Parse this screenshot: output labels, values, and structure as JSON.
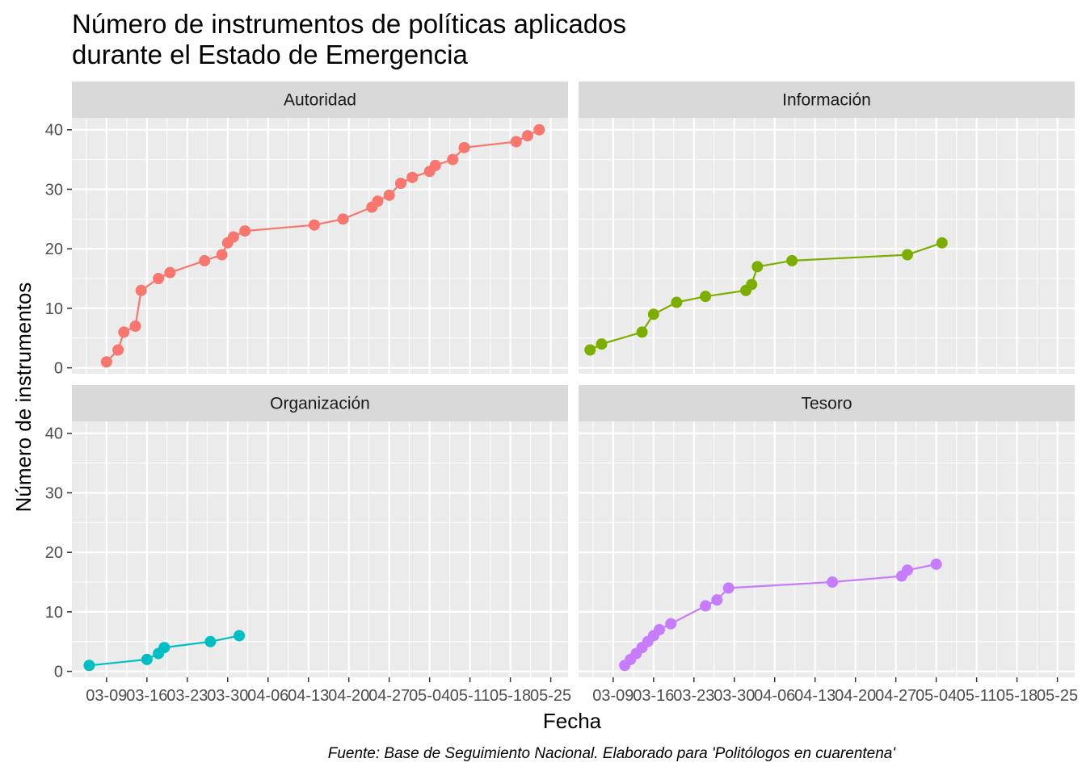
{
  "chart_data": {
    "type": "line",
    "title_lines": [
      "Número de instrumentos de políticas aplicados",
      "durante el Estado de Emergencia"
    ],
    "xlabel": "Fecha",
    "ylabel": "Número de instrumentos",
    "caption": "Fuente: Base de Seguimiento Nacional. Elaborado para 'Politólogos en cuarentena'",
    "x_tick_labels": [
      "03-09",
      "03-16",
      "03-23",
      "03-30",
      "04-06",
      "04-13",
      "04-20",
      "04-27",
      "05-04",
      "05-11",
      "05-18",
      "05-25"
    ],
    "y_ticks": [
      0,
      10,
      20,
      30,
      40
    ],
    "ylim": [
      -1,
      42
    ],
    "xlim": [
      "2020-03-03",
      "2020-05-28"
    ],
    "grid": true,
    "legend": "none",
    "facets": [
      {
        "name": "Autoridad",
        "color": "#F8766D",
        "points": [
          {
            "x": "2020-03-09",
            "y": 1
          },
          {
            "x": "2020-03-11",
            "y": 3
          },
          {
            "x": "2020-03-12",
            "y": 6
          },
          {
            "x": "2020-03-14",
            "y": 7
          },
          {
            "x": "2020-03-15",
            "y": 13
          },
          {
            "x": "2020-03-18",
            "y": 15
          },
          {
            "x": "2020-03-20",
            "y": 16
          },
          {
            "x": "2020-03-26",
            "y": 18
          },
          {
            "x": "2020-03-29",
            "y": 19
          },
          {
            "x": "2020-03-30",
            "y": 21
          },
          {
            "x": "2020-03-31",
            "y": 22
          },
          {
            "x": "2020-04-02",
            "y": 23
          },
          {
            "x": "2020-04-14",
            "y": 24
          },
          {
            "x": "2020-04-19",
            "y": 25
          },
          {
            "x": "2020-04-24",
            "y": 27
          },
          {
            "x": "2020-04-25",
            "y": 28
          },
          {
            "x": "2020-04-27",
            "y": 29
          },
          {
            "x": "2020-04-29",
            "y": 31
          },
          {
            "x": "2020-05-01",
            "y": 32
          },
          {
            "x": "2020-05-04",
            "y": 33
          },
          {
            "x": "2020-05-05",
            "y": 34
          },
          {
            "x": "2020-05-08",
            "y": 35
          },
          {
            "x": "2020-05-10",
            "y": 37
          },
          {
            "x": "2020-05-19",
            "y": 38
          },
          {
            "x": "2020-05-21",
            "y": 39
          },
          {
            "x": "2020-05-23",
            "y": 40
          }
        ]
      },
      {
        "name": "Información",
        "color": "#7CAE00",
        "points": [
          {
            "x": "2020-03-05",
            "y": 3
          },
          {
            "x": "2020-03-07",
            "y": 4
          },
          {
            "x": "2020-03-14",
            "y": 6
          },
          {
            "x": "2020-03-16",
            "y": 9
          },
          {
            "x": "2020-03-20",
            "y": 11
          },
          {
            "x": "2020-03-25",
            "y": 12
          },
          {
            "x": "2020-04-01",
            "y": 13
          },
          {
            "x": "2020-04-02",
            "y": 14
          },
          {
            "x": "2020-04-03",
            "y": 17
          },
          {
            "x": "2020-04-09",
            "y": 18
          },
          {
            "x": "2020-04-29",
            "y": 19
          },
          {
            "x": "2020-05-05",
            "y": 21
          }
        ]
      },
      {
        "name": "Organización",
        "color": "#00BFC4",
        "points": [
          {
            "x": "2020-03-06",
            "y": 1
          },
          {
            "x": "2020-03-16",
            "y": 2
          },
          {
            "x": "2020-03-18",
            "y": 3
          },
          {
            "x": "2020-03-19",
            "y": 4
          },
          {
            "x": "2020-03-27",
            "y": 5
          },
          {
            "x": "2020-04-01",
            "y": 6
          }
        ]
      },
      {
        "name": "Tesoro",
        "color": "#C77CFF",
        "points": [
          {
            "x": "2020-03-11",
            "y": 1
          },
          {
            "x": "2020-03-12",
            "y": 2
          },
          {
            "x": "2020-03-13",
            "y": 3
          },
          {
            "x": "2020-03-14",
            "y": 4
          },
          {
            "x": "2020-03-15",
            "y": 5
          },
          {
            "x": "2020-03-16",
            "y": 6
          },
          {
            "x": "2020-03-17",
            "y": 7
          },
          {
            "x": "2020-03-19",
            "y": 8
          },
          {
            "x": "2020-03-25",
            "y": 11
          },
          {
            "x": "2020-03-27",
            "y": 12
          },
          {
            "x": "2020-03-29",
            "y": 14
          },
          {
            "x": "2020-04-16",
            "y": 15
          },
          {
            "x": "2020-04-28",
            "y": 16
          },
          {
            "x": "2020-04-29",
            "y": 17
          },
          {
            "x": "2020-05-04",
            "y": 18
          }
        ]
      }
    ]
  }
}
